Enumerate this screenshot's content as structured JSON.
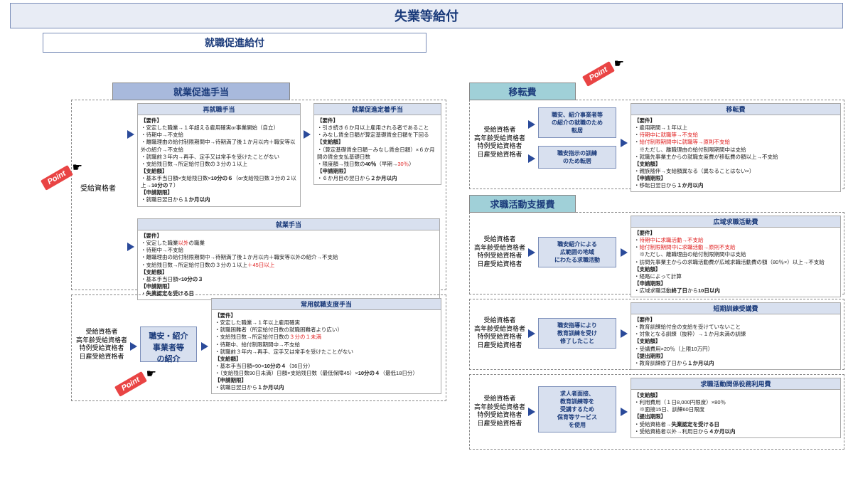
{
  "colors": {
    "headerBg": "#e8ecf5",
    "sectionBlue": "#a8b9dc",
    "sectionTeal": "#a0d0d8",
    "cardTitleBg": "#d8e0ef",
    "arrow": "#2a4a9a",
    "red": "#e02020",
    "border": "#888"
  },
  "title": "失業等給付",
  "subtitle": "就職促進給付",
  "sections": {
    "s1": {
      "title": "就業促進手当"
    },
    "s2": {
      "title": "移転費"
    },
    "s3": {
      "title": "求職活動支援費"
    }
  },
  "labels": {
    "jukyuu": "受給資格者",
    "jukyuu4": "受給資格者\n高年齢受給資格者\n特例受給資格者\n日雇受給資格者",
    "shokai": "職安・紹介\n事業者等\nの紹介",
    "tenkyo1": "職安、紹介事業者等\nの紹介の就職のため\n転居",
    "tenkyo2": "職安指示の訓練\nのため転居",
    "kouiki": "職安紹介による\n広範囲の地域\nにわたる求職活動",
    "kyouiku": "職安指導により\n教育訓練を受け\n修了したこと",
    "hoiku": "求人者面接、\n教育訓練等を\n受講するため\n保育等サービス\nを使用"
  },
  "cards": {
    "c1": {
      "title": "再就職手当",
      "body": "【要件】\n・安定した職業→１年超える雇用確実or事業開始（自立）\n・待期中→不支給\n・離職理由の給付制限期間中→待期満了後１か月以内＋職安等以外の紹介→不支給\n・就職前３年内→再手、定手又は常手を受けたことがない\n・支給残日数→所定給付日数の３分の１以上\n【支給額】\n・基本手当日額×支給残日数×<b>10分の６</b>（or支給残日数３分の２以上→<b>10分の７</b>）\n【申請期限】\n・就職日翌日から<b>１か月以内</b>"
    },
    "c2": {
      "title": "就業促進定着手当",
      "body": "【要件】\n・引き続き６か月以上雇用される者であること\n・みなし賃金日額が算定基礎賃金日額を下回る\n【支給額】\n・（算定基礎賃金日額－みなし賃金日額）×６か月間の賃金支払基礎日数\n・限度額→残日数の<b>40％</b>（早期→<r>30％</r>）\n【申請期限】\n・６か月目の翌日から<b>２か月以内</b>"
    },
    "c3": {
      "title": "就業手当",
      "body": "【要件】\n・安定した職業<r>以外</r>の職業\n・待期中→不支給\n・離職理由の給付制限期間中→待期満了後１か月以内＋職安等以外の紹介→不支給\n・支給残日数→所定給付日数の３分の１以上<r>＋45日以上</r>\n【支給額】\n・基本手当日額×<b>10分の３</b>\n【申請期限】\n・<b>失業認定を受ける日</b>"
    },
    "c4": {
      "title": "常用就職支度手当",
      "body": "【要件】\n・安定した職業→１年以上雇用確実\n・就職困難者（所定給付日数の就職困難者より広い）\n・支給残日数→所定給付日数の<r>３分の１未満</r>\n・待期中、給付制限期間中→不支給\n・就職前３年内→再手、定手又は常手を受けたことがない\n【支給額】\n・基本手当日額×90×<b>10分の４</b>（36日分）\n・（支給残日数90日未満）日額×支給残日数（最低保障45）×<b>10分の４</b>（最低18日分）\n【申請期限】\n・就職日翌日から<b>１か月以内</b>"
    },
    "c5": {
      "title": "移転費",
      "body": "【要件】\n・雇用期間→１年以上\n・<r>待期中に就職等→不支給</r>\n・<r>給付制限期間中に就職等→原則不支給</r>\n　※ただし、離職理由の給付制限期間中は支給\n・就職先事業主からの就職支度費が移転費の額以上→不支給\n【支給額】\n・親族随伴→支給額異なる（異なることはない×）\n【申請期限】\n・移転日翌日から<b>１か月以内</b>"
    },
    "c6": {
      "title": "広域求職活動費",
      "body": "【要件】\n・<r>待期中に求職活動→不支給</r>\n・<r>給付制限期間中に求職活動→原則不支給</r>\n　※ただし、離職理由の給付制限期間中は支給\n・訪問先事業主からの求職活動費が広域求職活動費の額（80％×）以上→不支給\n【支給額】\n・経路によって計算\n【申請期限】\n・広域求職活動<b>終了日</b>から<b>10日以内</b>"
    },
    "c7": {
      "title": "短期訓練受講費",
      "body": "【要件】\n・教育訓練給付金の支給を受けていないこと\n・対象となる訓練（抜粋）→１か月未満の訓練\n【支給額】\n・受講費用×20％（上限10万円）\n【提出期限】\n・教育訓練修了日から<b>１か月以内</b>"
    },
    "c8": {
      "title": "求職活動関係役務利用費",
      "body": "【支給額】\n・利用費用（１日8,000円限度）×80％\n　※面接15日、訓練60日限度\n【提出期限】\n・受給資格者→<b>失業認定を受ける日</b>\n・受給資格者以外→利用日から<b>４か月以内</b>"
    }
  },
  "point": "Point"
}
